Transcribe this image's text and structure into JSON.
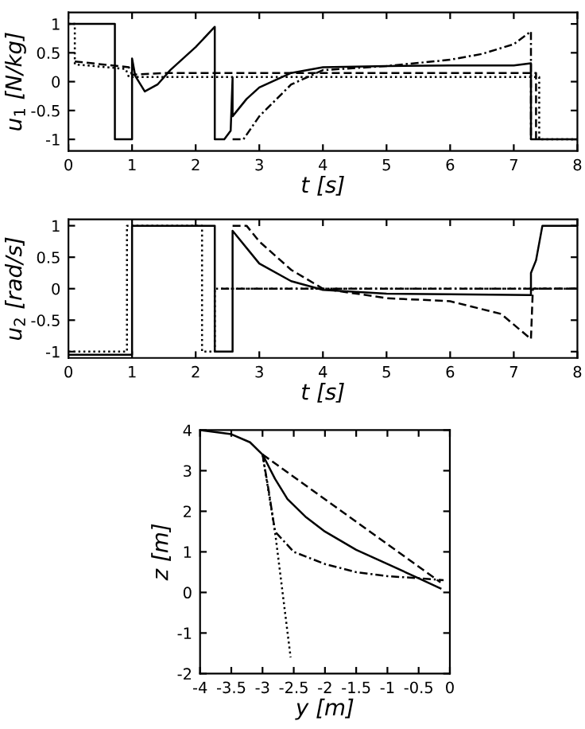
{
  "chart_data": [
    {
      "type": "line",
      "xlabel": "t [s]",
      "ylabel": "u$_{1}$ [N/kg]",
      "xlim": [
        0,
        8
      ],
      "ylim": [
        -1.2,
        1.2
      ],
      "xticks": [
        0,
        1,
        2,
        3,
        4,
        5,
        6,
        7,
        8
      ],
      "yticks": [
        -1,
        -0.5,
        0,
        0.5,
        1
      ],
      "grid": false,
      "legend": false,
      "series": [
        {
          "color": "#000000",
          "line_style": "solid",
          "x": [
            0,
            0.73,
            0.73,
            1.0,
            1.0,
            1.05,
            1.2,
            1.4,
            1.6,
            2.0,
            2.3,
            2.3,
            2.45,
            2.55,
            2.58,
            2.58,
            2.8,
            3.0,
            3.5,
            4.0,
            5,
            6,
            7,
            7.27,
            7.27,
            8
          ],
          "values": [
            1,
            1,
            -1,
            -1,
            0.4,
            0.1,
            -0.17,
            -0.05,
            0.2,
            0.6,
            0.95,
            -1,
            -1,
            -0.85,
            0.07,
            -0.6,
            -0.3,
            -0.1,
            0.15,
            0.25,
            0.27,
            0.28,
            0.28,
            0.32,
            -1,
            -1
          ]
        },
        {
          "color": "#000000",
          "line_style": "dashed",
          "x": [
            0.1,
            0.95,
            1.0,
            1.5,
            7.35,
            7.35
          ],
          "values": [
            0.35,
            0.25,
            0.12,
            0.15,
            0.15,
            -1
          ]
        },
        {
          "color": "#000000",
          "line_style": "dotted",
          "x": [
            0,
            0.1,
            0.1,
            0.9,
            0.95,
            7.4,
            7.4,
            8
          ],
          "values": [
            1,
            1,
            0.3,
            0.22,
            0.08,
            0.08,
            -1,
            -1
          ]
        },
        {
          "color": "#000000",
          "line_style": "dashdot",
          "x": [
            2.58,
            2.75,
            3.0,
            3.5,
            4,
            5,
            6,
            6.5,
            7,
            7.27,
            7.27
          ],
          "values": [
            -1,
            -1,
            -0.6,
            -0.05,
            0.2,
            0.27,
            0.38,
            0.48,
            0.65,
            0.87,
            -1
          ]
        }
      ]
    },
    {
      "type": "line",
      "xlabel": "t [s]",
      "ylabel": "u$_{2}$ [rad/s]",
      "xlim": [
        0,
        8
      ],
      "ylim": [
        -1.1,
        1.1
      ],
      "xticks": [
        0,
        1,
        2,
        3,
        4,
        5,
        6,
        7,
        8
      ],
      "yticks": [
        -1,
        -0.5,
        0,
        0.5,
        1
      ],
      "grid": false,
      "legend": false,
      "series": [
        {
          "color": "#000000",
          "line_style": "solid",
          "x": [
            0,
            1.0,
            1.0,
            2.3,
            2.3,
            2.58,
            2.58,
            3,
            3.5,
            4,
            5,
            6,
            7.27,
            7.27,
            7.35,
            7.45,
            8
          ],
          "values": [
            -1.05,
            -1.05,
            1,
            1,
            -1,
            -1,
            0.92,
            0.4,
            0.12,
            -0.02,
            -0.08,
            -0.09,
            -0.1,
            0.25,
            0.45,
            1,
            1
          ]
        },
        {
          "color": "#000000",
          "line_style": "dotted",
          "x": [
            0,
            0.92,
            0.92,
            2.1,
            2.1,
            2.3,
            2.3,
            8
          ],
          "values": [
            -1,
            -1,
            1,
            1,
            -1,
            -1,
            0,
            0
          ]
        },
        {
          "color": "#000000",
          "line_style": "dashed",
          "x": [
            2.58,
            2.8,
            3.0,
            3.5,
            4,
            5,
            6,
            6.8,
            7.27,
            7.3,
            8
          ],
          "values": [
            1,
            1,
            0.75,
            0.3,
            0,
            -0.15,
            -0.2,
            -0.4,
            -0.8,
            0,
            0
          ]
        },
        {
          "color": "#000000",
          "line_style": "dashdot",
          "x": [
            2.4,
            8
          ],
          "values": [
            0,
            0
          ]
        }
      ]
    },
    {
      "type": "line",
      "xlabel": "y [m]",
      "ylabel": "z [m]",
      "xlim": [
        -4,
        0
      ],
      "ylim": [
        -2,
        4
      ],
      "xticks": [
        -4,
        -3.5,
        -3,
        -2.5,
        -2,
        -1.5,
        -1,
        -0.5,
        0
      ],
      "yticks": [
        -2,
        -1,
        0,
        1,
        2,
        3,
        4
      ],
      "grid": false,
      "legend": false,
      "series": [
        {
          "color": "#000000",
          "line_style": "solid",
          "x": [
            -4,
            -3.5,
            -3.2,
            -3,
            -2.8,
            -2.6,
            -2.3,
            -2,
            -1.5,
            -1,
            -0.5,
            -0.15
          ],
          "values": [
            4,
            3.9,
            3.7,
            3.4,
            2.8,
            2.3,
            1.85,
            1.5,
            1.05,
            0.7,
            0.35,
            0.1
          ]
        },
        {
          "color": "#000000",
          "line_style": "dashed",
          "x": [
            -3,
            -0.15
          ],
          "values": [
            3.4,
            0.25
          ]
        },
        {
          "color": "#000000",
          "line_style": "dashdot",
          "x": [
            -3,
            -2.9,
            -2.8,
            -2.5,
            -2,
            -1.5,
            -1,
            -0.5,
            -0.1
          ],
          "values": [
            3.4,
            2.5,
            1.5,
            1.0,
            0.7,
            0.5,
            0.4,
            0.35,
            0.3
          ]
        },
        {
          "color": "#000000",
          "line_style": "dotted",
          "x": [
            -3,
            -2.8,
            -2.55
          ],
          "values": [
            3.4,
            1.5,
            -1.6
          ]
        }
      ]
    }
  ]
}
